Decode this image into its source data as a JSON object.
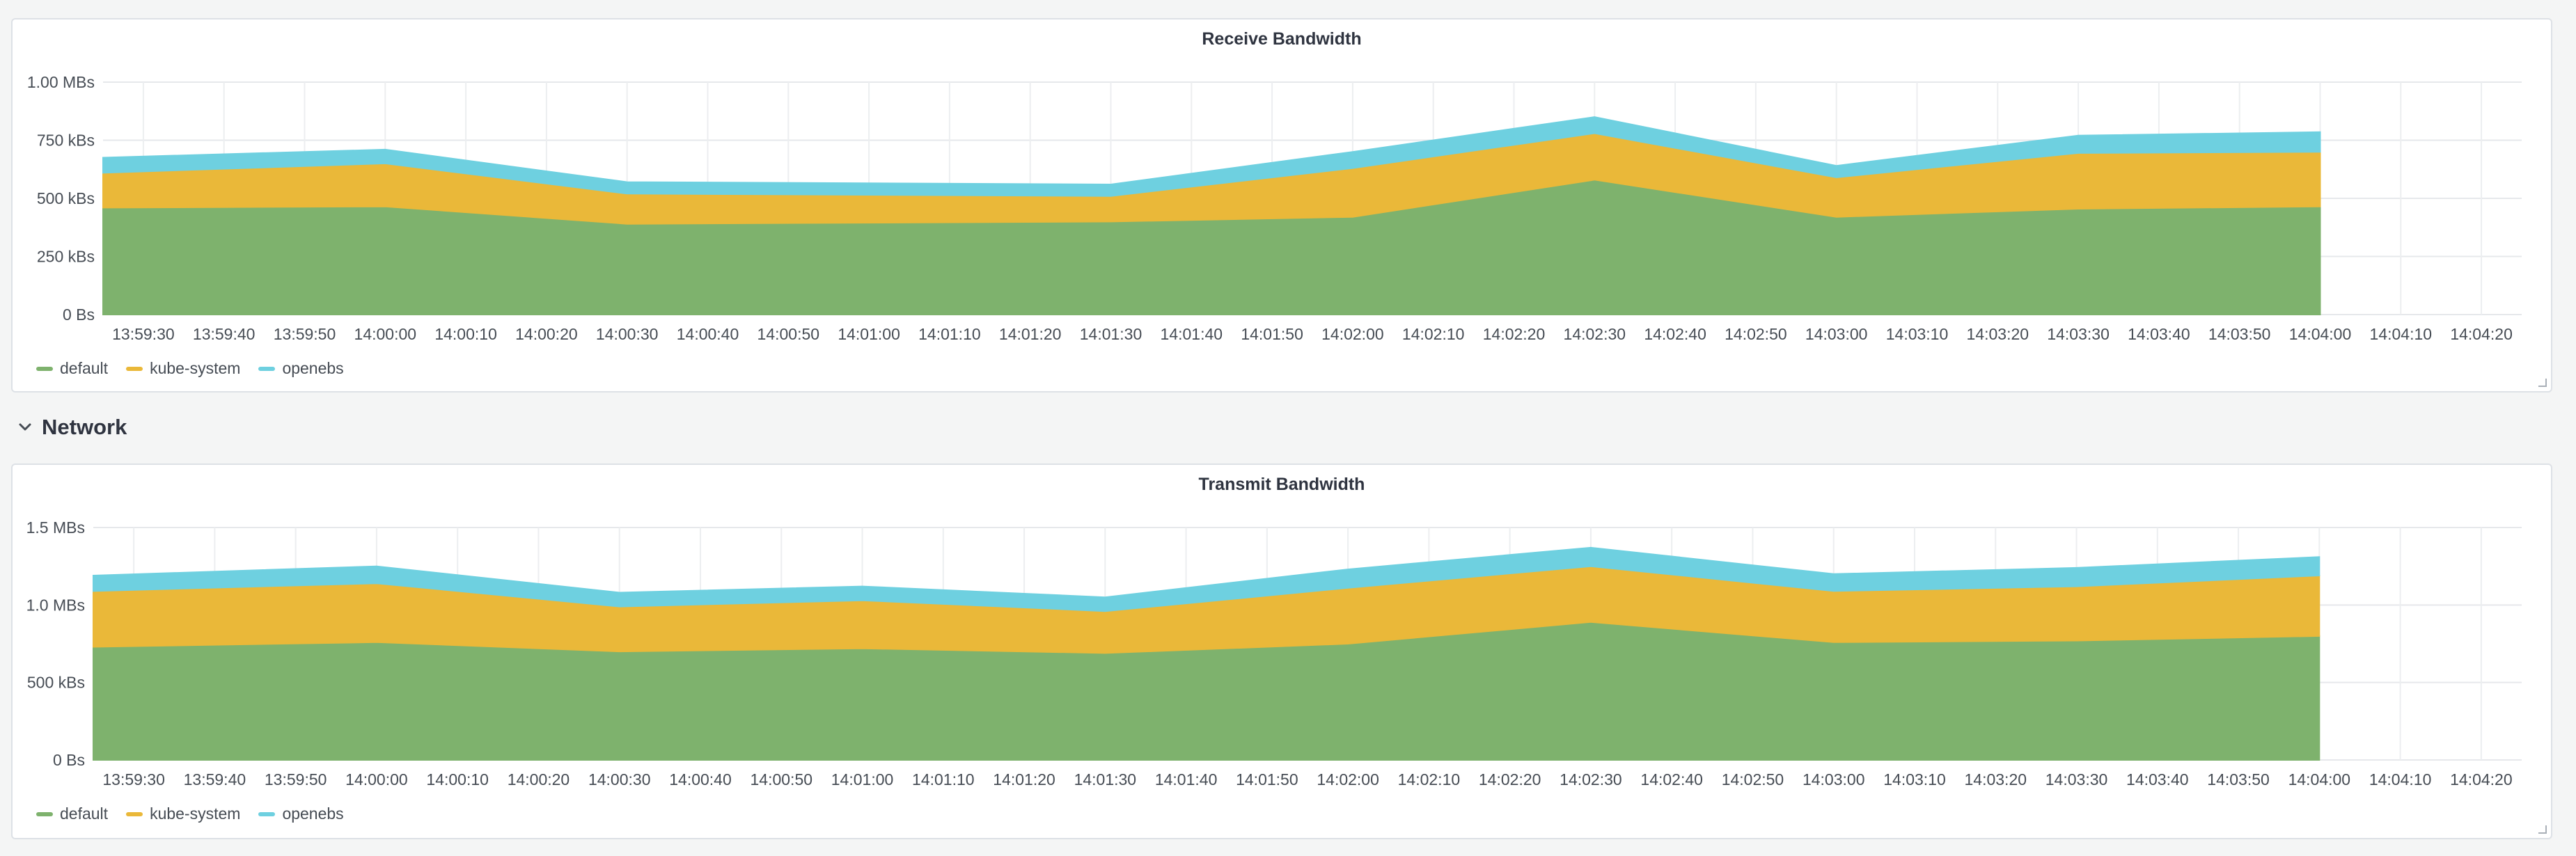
{
  "row": {
    "title": "Network"
  },
  "series_colors": {
    "default": "#7eb26d",
    "kube-system": "#eab839",
    "openebs": "#6ed0e0"
  },
  "legend_names": [
    "default",
    "kube-system",
    "openebs"
  ],
  "icons": {
    "row_toggle": "chevron-down-icon",
    "resize": "resize-handle-icon"
  },
  "chart_data": [
    {
      "type": "area",
      "stacked": true,
      "title": "Receive Bandwidth",
      "x": [
        "13:59:30",
        "13:59:40",
        "13:59:50",
        "14:00:00",
        "14:00:10",
        "14:00:20",
        "14:00:30",
        "14:00:40",
        "14:00:50",
        "14:01:00",
        "14:01:10",
        "14:01:20",
        "14:01:30",
        "14:01:40",
        "14:01:50",
        "14:02:00",
        "14:02:10",
        "14:02:20",
        "14:02:30",
        "14:02:40",
        "14:02:50",
        "14:03:00",
        "14:03:10",
        "14:03:20",
        "14:03:30",
        "14:03:40",
        "14:03:50",
        "14:04:00",
        "14:04:10",
        "14:04:20"
      ],
      "ylim": [
        0,
        1000
      ],
      "yticks": [
        "0 Bs",
        "250 kBs",
        "500 kBs",
        "750 kBs",
        "1.00 MBs"
      ],
      "yunit": "kBs",
      "grid": true,
      "legend_position": "bottom-left",
      "series": [
        {
          "name": "default",
          "points": [
            [
              "13:59:25",
              460
            ],
            [
              "14:00:00",
              465
            ],
            [
              "14:00:30",
              390
            ],
            [
              "14:01:30",
              400
            ],
            [
              "14:02:00",
              420
            ],
            [
              "14:02:30",
              580
            ],
            [
              "14:03:00",
              420
            ],
            [
              "14:03:30",
              455
            ],
            [
              "14:04:00",
              465
            ]
          ]
        },
        {
          "name": "kube-system",
          "points": [
            [
              "13:59:25",
              150
            ],
            [
              "14:00:00",
              185
            ],
            [
              "14:00:30",
              130
            ],
            [
              "14:01:30",
              110
            ],
            [
              "14:02:00",
              210
            ],
            [
              "14:02:30",
              200
            ],
            [
              "14:03:00",
              170
            ],
            [
              "14:03:30",
              240
            ],
            [
              "14:04:00",
              235
            ]
          ]
        },
        {
          "name": "openebs",
          "points": [
            [
              "13:59:25",
              65
            ],
            [
              "14:00:00",
              60
            ],
            [
              "14:00:30",
              50
            ],
            [
              "14:01:30",
              50
            ],
            [
              "14:02:00",
              70
            ],
            [
              "14:02:30",
              70
            ],
            [
              "14:03:00",
              50
            ],
            [
              "14:03:30",
              75
            ],
            [
              "14:04:00",
              85
            ]
          ]
        }
      ]
    },
    {
      "type": "area",
      "stacked": true,
      "title": "Transmit Bandwidth",
      "x": [
        "13:59:30",
        "13:59:40",
        "13:59:50",
        "14:00:00",
        "14:00:10",
        "14:00:20",
        "14:00:30",
        "14:00:40",
        "14:00:50",
        "14:01:00",
        "14:01:10",
        "14:01:20",
        "14:01:30",
        "14:01:40",
        "14:01:50",
        "14:02:00",
        "14:02:10",
        "14:02:20",
        "14:02:30",
        "14:02:40",
        "14:02:50",
        "14:03:00",
        "14:03:10",
        "14:03:20",
        "14:03:30",
        "14:03:40",
        "14:03:50",
        "14:04:00",
        "14:04:10",
        "14:04:20"
      ],
      "ylim": [
        0,
        1500
      ],
      "yticks": [
        "0 Bs",
        "500 kBs",
        "1.0 MBs",
        "1.5 MBs"
      ],
      "yunit": "kBs",
      "grid": true,
      "legend_position": "bottom-left",
      "series": [
        {
          "name": "default",
          "points": [
            [
              "13:59:25",
              730
            ],
            [
              "14:00:00",
              760
            ],
            [
              "14:00:30",
              700
            ],
            [
              "14:01:00",
              720
            ],
            [
              "14:01:30",
              690
            ],
            [
              "14:02:00",
              750
            ],
            [
              "14:02:30",
              890
            ],
            [
              "14:03:00",
              760
            ],
            [
              "14:03:30",
              770
            ],
            [
              "14:04:00",
              800
            ]
          ]
        },
        {
          "name": "kube-system",
          "points": [
            [
              "13:59:25",
              360
            ],
            [
              "14:00:00",
              380
            ],
            [
              "14:00:30",
              290
            ],
            [
              "14:01:00",
              310
            ],
            [
              "14:01:30",
              270
            ],
            [
              "14:02:00",
              360
            ],
            [
              "14:02:30",
              360
            ],
            [
              "14:03:00",
              330
            ],
            [
              "14:03:30",
              350
            ],
            [
              "14:04:00",
              390
            ]
          ]
        },
        {
          "name": "openebs",
          "points": [
            [
              "13:59:25",
              100
            ],
            [
              "14:00:00",
              110
            ],
            [
              "14:00:30",
              90
            ],
            [
              "14:01:00",
              90
            ],
            [
              "14:01:30",
              90
            ],
            [
              "14:02:00",
              120
            ],
            [
              "14:02:30",
              120
            ],
            [
              "14:03:00",
              110
            ],
            [
              "14:03:30",
              120
            ],
            [
              "14:04:00",
              120
            ]
          ]
        }
      ]
    }
  ]
}
